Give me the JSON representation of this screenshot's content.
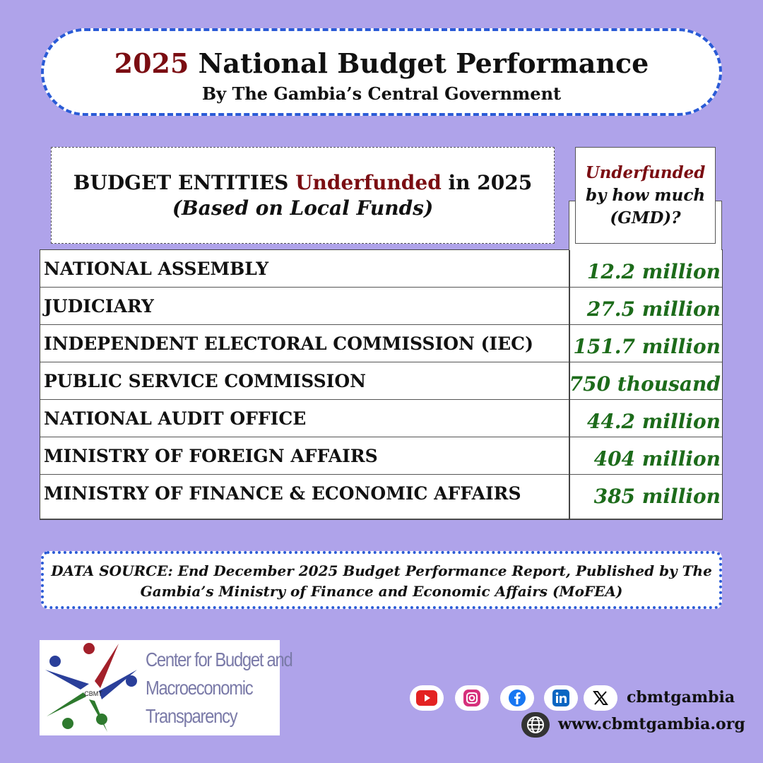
{
  "title": {
    "year": "2025",
    "main": " National Budget Performance",
    "subtitle": "By The Gambia’s Central Government"
  },
  "table_header": {
    "left_line1_a": "BUDGET ENTITIES ",
    "left_line1_highlight": "Underfunded",
    "left_line1_b": " in 2025",
    "left_line2": "(Based on Local Funds)",
    "right_line1": "Underfunded",
    "right_line2": "by how much",
    "right_line3": "(GMD)?"
  },
  "rows": [
    {
      "entity": "NATIONAL ASSEMBLY",
      "amount": "12.2 million"
    },
    {
      "entity": "JUDICIARY",
      "amount": "27.5 million"
    },
    {
      "entity": "INDEPENDENT ELECTORAL COMMISSION (IEC)",
      "amount": "151.7 million"
    },
    {
      "entity": "PUBLIC SERVICE COMMISSION",
      "amount": "750 thousand"
    },
    {
      "entity": "NATIONAL AUDIT OFFICE",
      "amount": "44.2 million"
    },
    {
      "entity": "MINISTRY OF FOREIGN AFFAIRS",
      "amount": "404 million"
    },
    {
      "entity": "MINISTRY OF FINANCE & ECONOMIC AFFAIRS",
      "amount": "385 million"
    }
  ],
  "source": {
    "line1": "DATA SOURCE: End December 2025 Budget Performance Report, Published by The",
    "line2": "Gambia’s Ministry of Finance and Economic Affairs (MoFEA)"
  },
  "logo": {
    "line1": "Center for Budget and",
    "line2": "Macroeconomic",
    "line3": "Transparency",
    "emblem_text": "CBMT"
  },
  "social": {
    "icons": [
      "youtube-icon",
      "instagram-icon",
      "facebook-icon",
      "linkedin-icon",
      "x-icon"
    ],
    "handle": "cbmtgambia",
    "website": "www.cbmtgambia.org"
  },
  "colors": {
    "background": "#afa3ea",
    "accent_red": "#7b0d12",
    "amount_green": "#1c6b1a",
    "border_blue": "#2a5bd6"
  }
}
